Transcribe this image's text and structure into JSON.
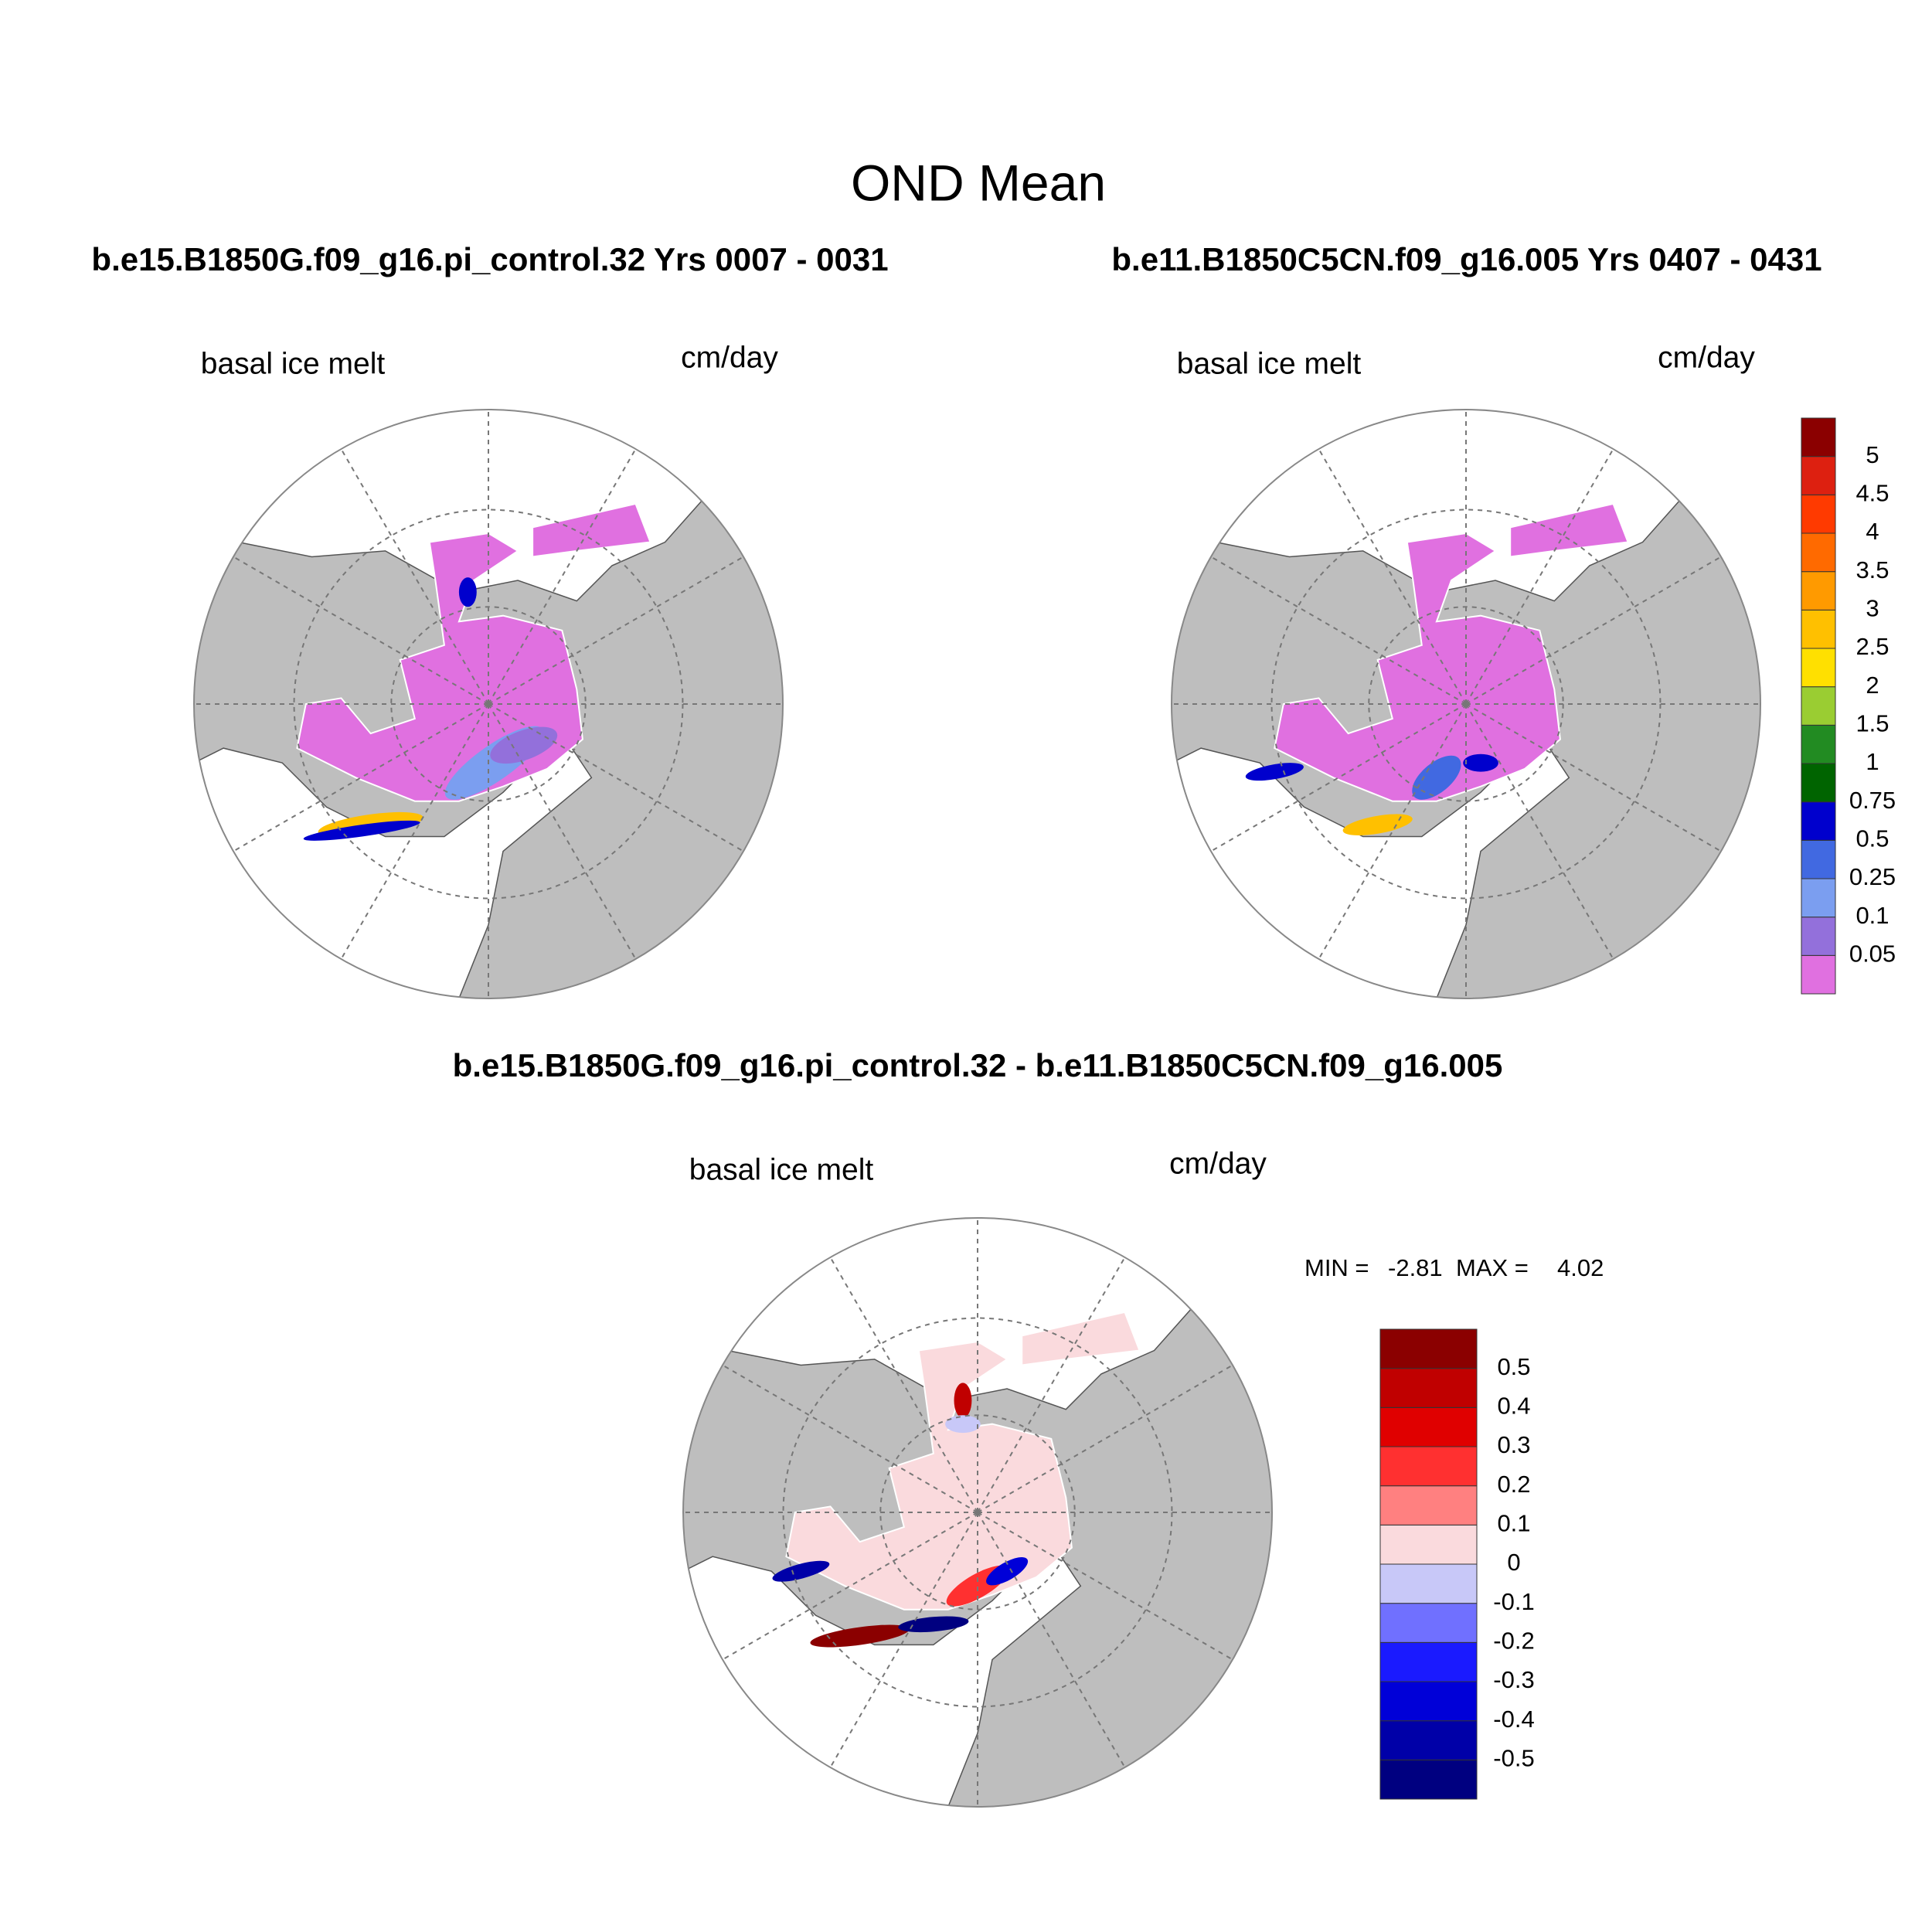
{
  "title": "OND Mean",
  "panels": [
    {
      "heading": "b.e15.B1850G.f09_g16.pi_control.32  Yrs 0007 - 0031",
      "variable": "basal ice melt",
      "units": "cm/day"
    },
    {
      "heading": "b.e11.B1850C5CN.f09_g16.005  Yrs 0407 - 0431",
      "variable": "basal ice melt",
      "units": "cm/day"
    }
  ],
  "colorbar": {
    "labels": [
      "0.05",
      "0.1",
      "0.25",
      "0.5",
      "0.75",
      "1",
      "1.5",
      "2",
      "2.5",
      "3",
      "3.5",
      "4",
      "4.5",
      "5"
    ],
    "colors": [
      "#e070e0",
      "#9370db",
      "#7b9ef0",
      "#4169e1",
      "#0000cd",
      "#006400",
      "#228b22",
      "#9acd32",
      "#ffe000",
      "#ffc000",
      "#ff9a00",
      "#ff6a00",
      "#ff3a00",
      "#dd2010",
      "#8b0000"
    ]
  },
  "difference": {
    "heading": "b.e15.B1850G.f09_g16.pi_control.32 - b.e11.B1850C5CN.f09_g16.005",
    "variable": "basal ice melt",
    "units": "cm/day",
    "min_label": "MIN =",
    "min": "-2.81",
    "max_label": "MAX =",
    "max": "4.02",
    "colorbar": {
      "labels": [
        "-0.5",
        "-0.4",
        "-0.3",
        "-0.2",
        "-0.1",
        "0",
        "0.1",
        "0.2",
        "0.3",
        "0.4",
        "0.5"
      ],
      "colors": [
        "#000080",
        "#0000a8",
        "#0000d8",
        "#1a1aff",
        "#7070ff",
        "#c8c8f8",
        "#fadadd",
        "#ff8080",
        "#ff3030",
        "#e00000",
        "#c00000",
        "#8b0000"
      ]
    }
  }
}
